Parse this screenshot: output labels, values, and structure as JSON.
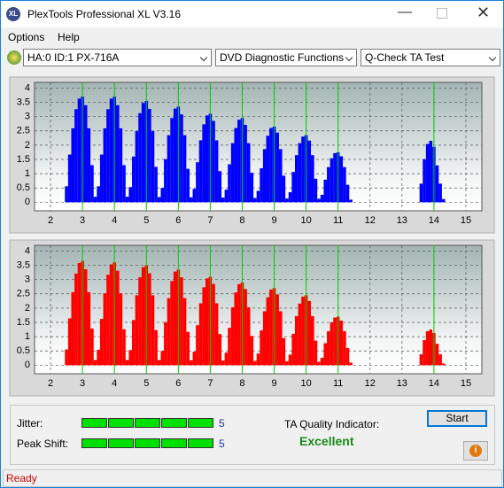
{
  "window": {
    "title": "PlexTools Professional XL V3.16",
    "menu": [
      "Options",
      "Help"
    ]
  },
  "toolbar": {
    "drive": "HA:0 ID:1  PX-716A",
    "function": "DVD Diagnostic Functions",
    "test": "Q-Check TA Test"
  },
  "chart_data": [
    {
      "type": "bar",
      "color": "#0000ff",
      "x": [
        2.5,
        2.6,
        2.7,
        2.8,
        2.9,
        3.0,
        3.1,
        3.2,
        3.3,
        3.4,
        3.5,
        3.6,
        3.7,
        3.8,
        3.9,
        4.0,
        4.1,
        4.2,
        4.3,
        4.4,
        4.5,
        4.6,
        4.7,
        4.8,
        4.9,
        5.0,
        5.1,
        5.2,
        5.3,
        5.4,
        5.5,
        5.6,
        5.7,
        5.8,
        5.9,
        6.0,
        6.1,
        6.2,
        6.3,
        6.4,
        6.5,
        6.6,
        6.7,
        6.8,
        6.9,
        7.0,
        7.1,
        7.2,
        7.3,
        7.4,
        7.5,
        7.6,
        7.7,
        7.8,
        7.9,
        8.0,
        8.1,
        8.2,
        8.3,
        8.4,
        8.5,
        8.6,
        8.7,
        8.8,
        8.9,
        9.0,
        9.1,
        9.2,
        9.3,
        9.4,
        9.5,
        9.6,
        9.7,
        9.8,
        9.9,
        10.0,
        10.1,
        10.2,
        10.3,
        10.4,
        10.5,
        10.6,
        10.7,
        10.8,
        10.9,
        11.0,
        11.1,
        11.2,
        11.3,
        11.4,
        13.6,
        13.7,
        13.8,
        13.9,
        14.0,
        14.1,
        14.2,
        14.3
      ],
      "values": [
        0.56,
        1.67,
        2.59,
        3.26,
        3.63,
        3.7,
        3.4,
        2.59,
        1.3,
        0.19,
        0.56,
        1.67,
        2.59,
        3.26,
        3.63,
        3.7,
        3.4,
        2.59,
        1.3,
        0.19,
        0.53,
        1.6,
        2.49,
        3.12,
        3.48,
        3.55,
        3.27,
        2.49,
        1.24,
        0.18,
        0.5,
        1.51,
        2.35,
        2.95,
        3.28,
        3.35,
        3.08,
        2.35,
        1.17,
        0.17,
        0.47,
        1.4,
        2.17,
        2.73,
        3.04,
        3.1,
        2.85,
        2.17,
        1.09,
        0.16,
        0.44,
        1.33,
        2.07,
        2.6,
        2.89,
        2.95,
        2.71,
        2.07,
        1.03,
        0.15,
        0.4,
        1.19,
        1.86,
        2.33,
        2.6,
        2.65,
        2.44,
        1.86,
        0.93,
        0.13,
        0.35,
        1.06,
        1.65,
        2.07,
        2.3,
        2.35,
        2.16,
        1.65,
        0.82,
        0.12,
        0.26,
        0.79,
        1.23,
        1.54,
        1.72,
        1.75,
        1.61,
        1.23,
        0.61,
        0.09,
        0.65,
        1.51,
        2.04,
        2.15,
        1.94,
        1.29,
        0.65,
        0.11
      ],
      "xlim": [
        1.5,
        15.5
      ],
      "ylim": [
        -0.3,
        4.2
      ],
      "xticks": [
        2,
        3,
        4,
        5,
        6,
        7,
        8,
        9,
        10,
        11,
        12,
        13,
        14,
        15
      ],
      "yticks": [
        0,
        0.5,
        1,
        1.5,
        2,
        2.5,
        3,
        3.5,
        4
      ],
      "grid": true,
      "markers": [
        3,
        4,
        5,
        6,
        7,
        8,
        9,
        10,
        11,
        14
      ],
      "marker_color": "#00d000"
    },
    {
      "type": "bar",
      "color": "#ff0000",
      "x": [
        2.5,
        2.6,
        2.7,
        2.8,
        2.9,
        3.0,
        3.1,
        3.2,
        3.3,
        3.4,
        3.5,
        3.6,
        3.7,
        3.8,
        3.9,
        4.0,
        4.1,
        4.2,
        4.3,
        4.4,
        4.5,
        4.6,
        4.7,
        4.8,
        4.9,
        5.0,
        5.1,
        5.2,
        5.3,
        5.4,
        5.5,
        5.6,
        5.7,
        5.8,
        5.9,
        6.0,
        6.1,
        6.2,
        6.3,
        6.4,
        6.5,
        6.6,
        6.7,
        6.8,
        6.9,
        7.0,
        7.1,
        7.2,
        7.3,
        7.4,
        7.5,
        7.6,
        7.7,
        7.8,
        7.9,
        8.0,
        8.1,
        8.2,
        8.3,
        8.4,
        8.5,
        8.6,
        8.7,
        8.8,
        8.9,
        9.0,
        9.1,
        9.2,
        9.3,
        9.4,
        9.5,
        9.6,
        9.7,
        9.8,
        9.9,
        10.0,
        10.1,
        10.2,
        10.3,
        10.4,
        10.5,
        10.6,
        10.7,
        10.8,
        10.9,
        11.0,
        11.1,
        11.2,
        11.3,
        11.4,
        13.6,
        13.7,
        13.8,
        13.9,
        14.0,
        14.1,
        14.2,
        14.3
      ],
      "values": [
        0.55,
        1.64,
        2.56,
        3.21,
        3.58,
        3.65,
        3.36,
        2.56,
        1.28,
        0.18,
        0.54,
        1.62,
        2.52,
        3.17,
        3.53,
        3.6,
        3.31,
        2.52,
        1.26,
        0.18,
        0.53,
        1.58,
        2.45,
        3.08,
        3.43,
        3.5,
        3.22,
        2.45,
        1.23,
        0.18,
        0.5,
        1.51,
        2.35,
        2.95,
        3.28,
        3.35,
        3.08,
        2.35,
        1.17,
        0.17,
        0.47,
        1.4,
        2.17,
        2.73,
        3.04,
        3.1,
        2.85,
        2.17,
        1.09,
        0.16,
        0.44,
        1.31,
        2.03,
        2.55,
        2.84,
        2.9,
        2.67,
        2.03,
        1.02,
        0.15,
        0.41,
        1.22,
        1.89,
        2.38,
        2.65,
        2.7,
        2.48,
        1.89,
        0.95,
        0.14,
        0.37,
        1.1,
        1.72,
        2.16,
        2.4,
        2.45,
        2.25,
        1.72,
        0.86,
        0.12,
        0.26,
        0.77,
        1.19,
        1.5,
        1.67,
        1.7,
        1.56,
        1.19,
        0.6,
        0.09,
        0.38,
        0.88,
        1.19,
        1.25,
        1.13,
        0.75,
        0.38,
        0.06
      ],
      "xlim": [
        1.5,
        15.5
      ],
      "ylim": [
        -0.3,
        4.2
      ],
      "xticks": [
        2,
        3,
        4,
        5,
        6,
        7,
        8,
        9,
        10,
        11,
        12,
        13,
        14,
        15
      ],
      "yticks": [
        0,
        0.5,
        1,
        1.5,
        2,
        2.5,
        3,
        3.5,
        4
      ],
      "grid": true,
      "markers": [
        3,
        4,
        5,
        6,
        7,
        8,
        9,
        10,
        11,
        14
      ],
      "marker_color": "#00d000"
    }
  ],
  "indicators": [
    {
      "label": "Jitter:",
      "value": 5
    },
    {
      "label": "Peak Shift:",
      "value": 5
    }
  ],
  "quality": {
    "label": "TA Quality Indicator:",
    "value": "Excellent"
  },
  "buttons": {
    "start": "Start"
  },
  "status": "Ready"
}
